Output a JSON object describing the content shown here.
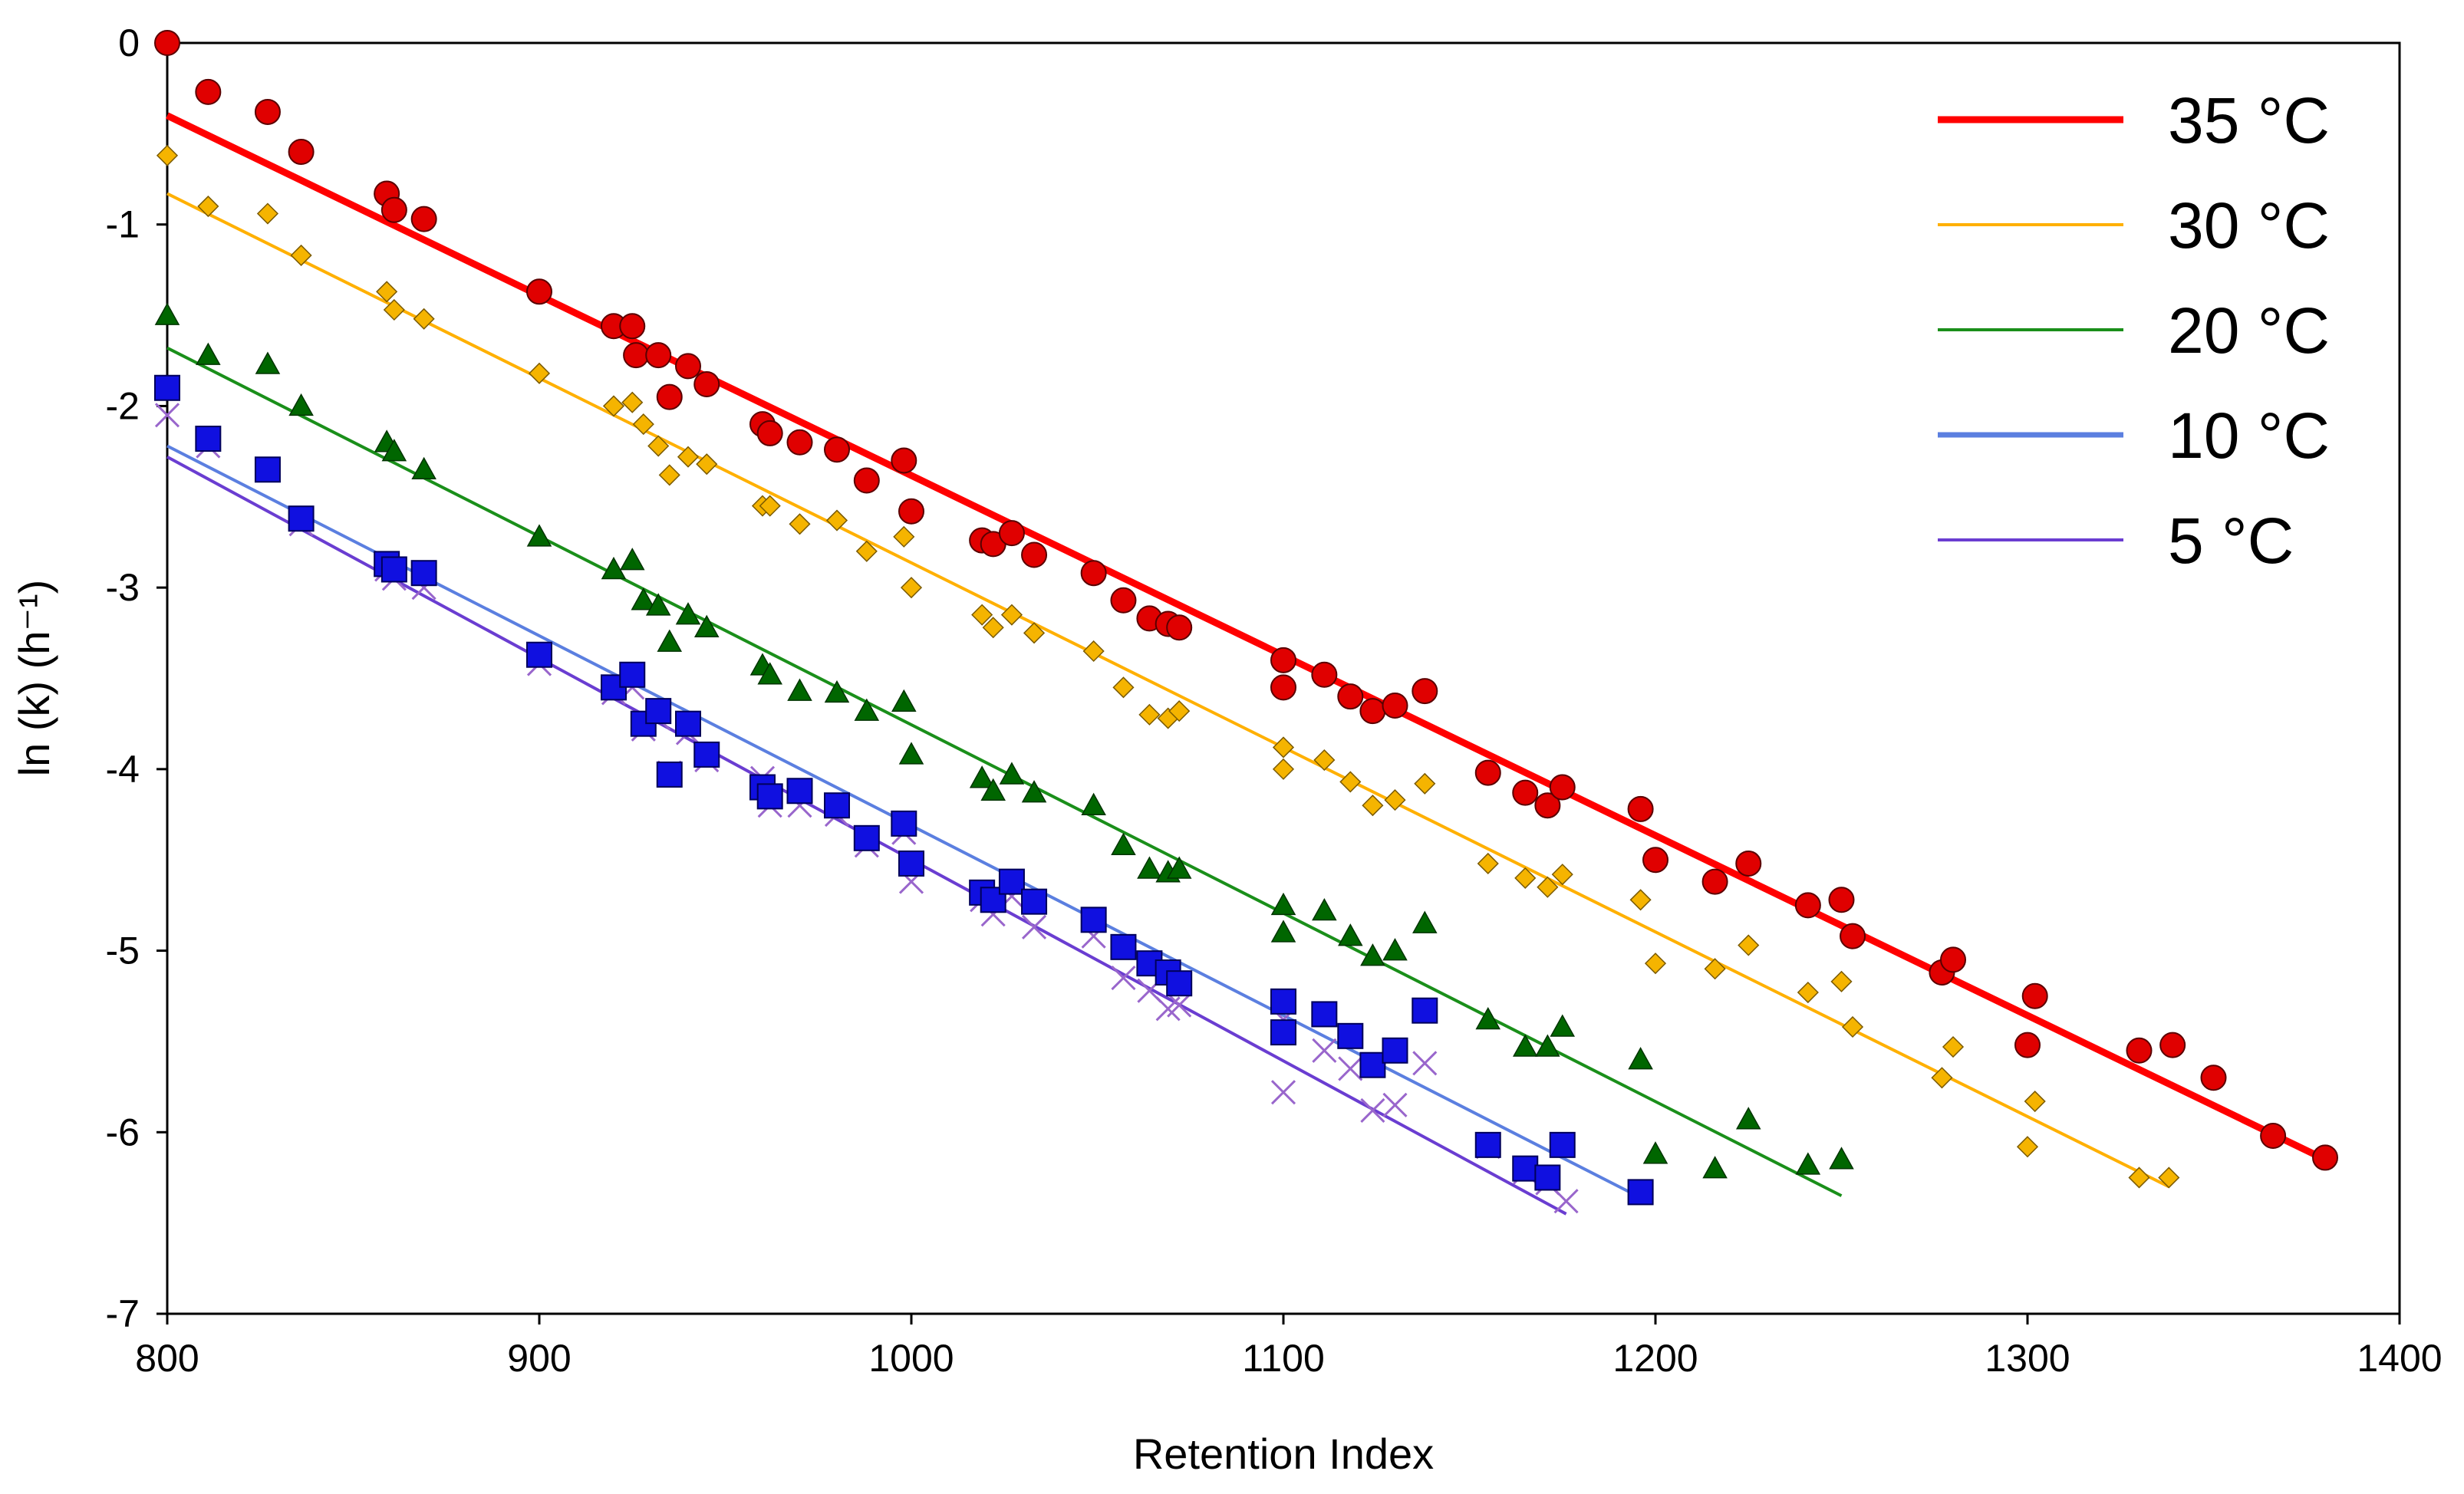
{
  "chart_data": {
    "type": "scatter",
    "title": "",
    "xlabel": "Retention Index",
    "ylabel": "ln (k) (h⁻¹)",
    "xlim": [
      800,
      1400
    ],
    "ylim": [
      -7,
      0
    ],
    "xticks": [
      "800",
      "900",
      "1000",
      "1100",
      "1200",
      "1300",
      "1400"
    ],
    "yticks": [
      "0",
      "-1",
      "-2",
      "-3",
      "-4",
      "-5",
      "-6",
      "-7"
    ],
    "grid": false,
    "legend_position": "top-right",
    "series": [
      {
        "name": "35 °C",
        "color": "#e00000",
        "line_color": "#ff0000",
        "marker": "circle",
        "fit": [
          [
            800,
            -0.4
          ],
          [
            1380,
            -6.15
          ]
        ],
        "points": [
          [
            800,
            0.0
          ],
          [
            811,
            -0.27
          ],
          [
            827,
            -0.38
          ],
          [
            836,
            -0.6
          ],
          [
            859,
            -0.83
          ],
          [
            861,
            -0.92
          ],
          [
            869,
            -0.97
          ],
          [
            900,
            -1.37
          ],
          [
            920,
            -1.56
          ],
          [
            925,
            -1.56
          ],
          [
            926,
            -1.72
          ],
          [
            932,
            -1.72
          ],
          [
            935,
            -1.95
          ],
          [
            940,
            -1.78
          ],
          [
            945,
            -1.88
          ],
          [
            960,
            -2.1
          ],
          [
            962,
            -2.15
          ],
          [
            970,
            -2.2
          ],
          [
            980,
            -2.24
          ],
          [
            988,
            -2.41
          ],
          [
            998,
            -2.3
          ],
          [
            1000,
            -2.58
          ],
          [
            1019,
            -2.74
          ],
          [
            1022,
            -2.76
          ],
          [
            1027,
            -2.7
          ],
          [
            1033,
            -2.82
          ],
          [
            1049,
            -2.92
          ],
          [
            1057,
            -3.07
          ],
          [
            1064,
            -3.17
          ],
          [
            1069,
            -3.2
          ],
          [
            1072,
            -3.22
          ],
          [
            1100,
            -3.4
          ],
          [
            1100,
            -3.55
          ],
          [
            1111,
            -3.48
          ],
          [
            1118,
            -3.6
          ],
          [
            1124,
            -3.68
          ],
          [
            1130,
            -3.65
          ],
          [
            1138,
            -3.57
          ],
          [
            1155,
            -4.02
          ],
          [
            1165,
            -4.13
          ],
          [
            1171,
            -4.2
          ],
          [
            1175,
            -4.1
          ],
          [
            1196,
            -4.22
          ],
          [
            1200,
            -4.5
          ],
          [
            1216,
            -4.62
          ],
          [
            1225,
            -4.52
          ],
          [
            1241,
            -4.75
          ],
          [
            1250,
            -4.72
          ],
          [
            1253,
            -4.92
          ],
          [
            1277,
            -5.12
          ],
          [
            1280,
            -5.05
          ],
          [
            1300,
            -5.52
          ],
          [
            1302,
            -5.25
          ],
          [
            1330,
            -5.55
          ],
          [
            1339,
            -5.52
          ],
          [
            1350,
            -5.7
          ],
          [
            1366,
            -6.02
          ],
          [
            1380,
            -6.14
          ]
        ]
      },
      {
        "name": "30 °C",
        "color": "#f5b400",
        "line_color": "#ffb000",
        "marker": "diamond",
        "fit": [
          [
            800,
            -0.83
          ],
          [
            1338,
            -6.3
          ]
        ],
        "points": [
          [
            800,
            -0.62
          ],
          [
            811,
            -0.9
          ],
          [
            827,
            -0.94
          ],
          [
            836,
            -1.17
          ],
          [
            859,
            -1.37
          ],
          [
            861,
            -1.47
          ],
          [
            869,
            -1.52
          ],
          [
            900,
            -1.82
          ],
          [
            920,
            -2.0
          ],
          [
            925,
            -1.98
          ],
          [
            928,
            -2.1
          ],
          [
            932,
            -2.22
          ],
          [
            935,
            -2.38
          ],
          [
            940,
            -2.28
          ],
          [
            945,
            -2.32
          ],
          [
            960,
            -2.55
          ],
          [
            962,
            -2.55
          ],
          [
            970,
            -2.65
          ],
          [
            980,
            -2.63
          ],
          [
            988,
            -2.8
          ],
          [
            998,
            -2.72
          ],
          [
            1000,
            -3.0
          ],
          [
            1019,
            -3.15
          ],
          [
            1022,
            -3.22
          ],
          [
            1027,
            -3.15
          ],
          [
            1033,
            -3.25
          ],
          [
            1049,
            -3.35
          ],
          [
            1057,
            -3.55
          ],
          [
            1064,
            -3.7
          ],
          [
            1069,
            -3.72
          ],
          [
            1072,
            -3.68
          ],
          [
            1100,
            -3.88
          ],
          [
            1100,
            -4.0
          ],
          [
            1111,
            -3.95
          ],
          [
            1118,
            -4.07
          ],
          [
            1124,
            -4.2
          ],
          [
            1130,
            -4.17
          ],
          [
            1138,
            -4.08
          ],
          [
            1155,
            -4.52
          ],
          [
            1165,
            -4.6
          ],
          [
            1171,
            -4.65
          ],
          [
            1175,
            -4.58
          ],
          [
            1196,
            -4.72
          ],
          [
            1200,
            -5.07
          ],
          [
            1216,
            -5.1
          ],
          [
            1225,
            -4.97
          ],
          [
            1241,
            -5.23
          ],
          [
            1250,
            -5.17
          ],
          [
            1253,
            -5.42
          ],
          [
            1277,
            -5.7
          ],
          [
            1280,
            -5.53
          ],
          [
            1300,
            -6.08
          ],
          [
            1302,
            -5.83
          ],
          [
            1330,
            -6.25
          ],
          [
            1338,
            -6.25
          ]
        ]
      },
      {
        "name": "20 °C",
        "color": "#006600",
        "line_color": "#1a8f1a",
        "marker": "triangle",
        "fit": [
          [
            800,
            -1.68
          ],
          [
            1250,
            -6.35
          ]
        ],
        "points": [
          [
            800,
            -1.5
          ],
          [
            811,
            -1.72
          ],
          [
            827,
            -1.77
          ],
          [
            836,
            -2.0
          ],
          [
            859,
            -2.2
          ],
          [
            861,
            -2.25
          ],
          [
            869,
            -2.35
          ],
          [
            900,
            -2.72
          ],
          [
            920,
            -2.9
          ],
          [
            925,
            -2.85
          ],
          [
            928,
            -3.07
          ],
          [
            932,
            -3.1
          ],
          [
            935,
            -3.3
          ],
          [
            940,
            -3.15
          ],
          [
            945,
            -3.22
          ],
          [
            960,
            -3.43
          ],
          [
            962,
            -3.48
          ],
          [
            970,
            -3.57
          ],
          [
            980,
            -3.58
          ],
          [
            988,
            -3.68
          ],
          [
            998,
            -3.63
          ],
          [
            1000,
            -3.92
          ],
          [
            1019,
            -4.05
          ],
          [
            1022,
            -4.12
          ],
          [
            1027,
            -4.03
          ],
          [
            1033,
            -4.13
          ],
          [
            1049,
            -4.2
          ],
          [
            1057,
            -4.42
          ],
          [
            1064,
            -4.55
          ],
          [
            1069,
            -4.57
          ],
          [
            1072,
            -4.55
          ],
          [
            1100,
            -4.75
          ],
          [
            1100,
            -4.9
          ],
          [
            1111,
            -4.78
          ],
          [
            1118,
            -4.92
          ],
          [
            1124,
            -5.03
          ],
          [
            1130,
            -5.0
          ],
          [
            1138,
            -4.85
          ],
          [
            1155,
            -5.38
          ],
          [
            1165,
            -5.53
          ],
          [
            1171,
            -5.53
          ],
          [
            1175,
            -5.42
          ],
          [
            1196,
            -5.6
          ],
          [
            1200,
            -6.12
          ],
          [
            1216,
            -6.2
          ],
          [
            1225,
            -5.93
          ],
          [
            1241,
            -6.18
          ],
          [
            1250,
            -6.15
          ]
        ]
      },
      {
        "name": "10 °C",
        "color": "#1010e0",
        "line_color": "#5b7fe0",
        "marker": "square",
        "fit": [
          [
            800,
            -2.22
          ],
          [
            1195,
            -6.35
          ]
        ],
        "points": [
          [
            800,
            -1.9
          ],
          [
            811,
            -2.18
          ],
          [
            827,
            -2.35
          ],
          [
            836,
            -2.62
          ],
          [
            859,
            -2.87
          ],
          [
            861,
            -2.9
          ],
          [
            869,
            -2.92
          ],
          [
            900,
            -3.37
          ],
          [
            920,
            -3.55
          ],
          [
            925,
            -3.48
          ],
          [
            928,
            -3.75
          ],
          [
            932,
            -3.68
          ],
          [
            935,
            -4.03
          ],
          [
            940,
            -3.75
          ],
          [
            945,
            -3.92
          ],
          [
            960,
            -4.1
          ],
          [
            962,
            -4.15
          ],
          [
            970,
            -4.12
          ],
          [
            980,
            -4.2
          ],
          [
            988,
            -4.38
          ],
          [
            998,
            -4.3
          ],
          [
            1000,
            -4.52
          ],
          [
            1019,
            -4.68
          ],
          [
            1022,
            -4.72
          ],
          [
            1027,
            -4.62
          ],
          [
            1033,
            -4.73
          ],
          [
            1049,
            -4.83
          ],
          [
            1057,
            -4.98
          ],
          [
            1064,
            -5.07
          ],
          [
            1069,
            -5.12
          ],
          [
            1072,
            -5.18
          ],
          [
            1100,
            -5.28
          ],
          [
            1100,
            -5.45
          ],
          [
            1111,
            -5.35
          ],
          [
            1118,
            -5.47
          ],
          [
            1124,
            -5.63
          ],
          [
            1130,
            -5.55
          ],
          [
            1138,
            -5.33
          ],
          [
            1155,
            -6.07
          ],
          [
            1165,
            -6.2
          ],
          [
            1171,
            -6.25
          ],
          [
            1175,
            -6.07
          ],
          [
            1196,
            -6.33
          ]
        ]
      },
      {
        "name": "5 °C",
        "color": "#9966cc",
        "line_color": "#6a3dd1",
        "marker": "cross",
        "fit": [
          [
            800,
            -2.28
          ],
          [
            1176,
            -6.45
          ]
        ],
        "points": [
          [
            800,
            -2.05
          ],
          [
            811,
            -2.22
          ],
          [
            827,
            -2.35
          ],
          [
            836,
            -2.65
          ],
          [
            859,
            -2.9
          ],
          [
            861,
            -2.95
          ],
          [
            869,
            -3.0
          ],
          [
            900,
            -3.42
          ],
          [
            920,
            -3.58
          ],
          [
            925,
            -3.55
          ],
          [
            928,
            -3.78
          ],
          [
            932,
            -3.72
          ],
          [
            935,
            -4.02
          ],
          [
            940,
            -3.8
          ],
          [
            945,
            -3.95
          ],
          [
            960,
            -4.05
          ],
          [
            962,
            -4.2
          ],
          [
            970,
            -4.2
          ],
          [
            980,
            -4.25
          ],
          [
            988,
            -4.42
          ],
          [
            998,
            -4.35
          ],
          [
            1000,
            -4.62
          ],
          [
            1019,
            -4.72
          ],
          [
            1022,
            -4.8
          ],
          [
            1027,
            -4.7
          ],
          [
            1033,
            -4.87
          ],
          [
            1049,
            -4.92
          ],
          [
            1057,
            -5.15
          ],
          [
            1064,
            -5.22
          ],
          [
            1069,
            -5.32
          ],
          [
            1072,
            -5.3
          ],
          [
            1100,
            -5.38
          ],
          [
            1100,
            -5.78
          ],
          [
            1111,
            -5.55
          ],
          [
            1118,
            -5.65
          ],
          [
            1124,
            -5.88
          ],
          [
            1130,
            -5.85
          ],
          [
            1138,
            -5.62
          ],
          [
            1155,
            -6.08
          ],
          [
            1165,
            -6.22
          ],
          [
            1171,
            -6.28
          ],
          [
            1176,
            -6.38
          ]
        ]
      }
    ]
  }
}
